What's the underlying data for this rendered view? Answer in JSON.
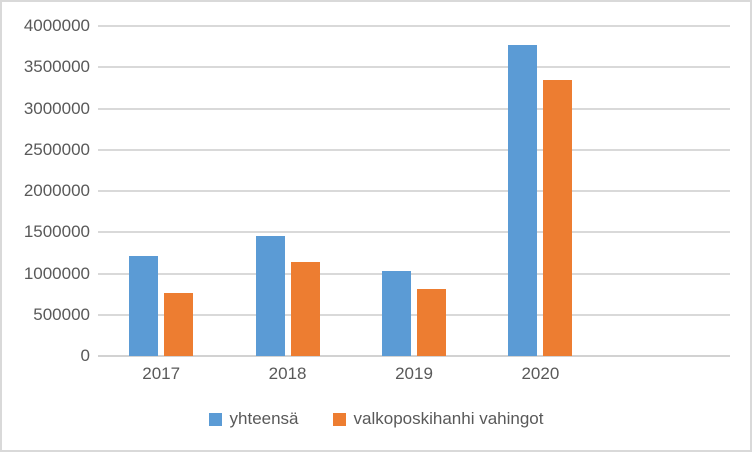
{
  "chart_style": {
    "background": "#ffffff",
    "border_color": "#d9d9d9",
    "gridline_color": "#d9d9d9",
    "axis_line_color": "#d2d2d2",
    "text_color": "#595959",
    "series_colors": [
      "#5b9bd5",
      "#ed7d31"
    ]
  },
  "chart_data": {
    "type": "bar",
    "title": "",
    "xlabel": "",
    "ylabel": "",
    "categories": [
      "2017",
      "2018",
      "2019",
      "2020"
    ],
    "series": [
      {
        "name": "yhteensä",
        "color": "#5b9bd5",
        "values": [
          1210000,
          1460000,
          1030000,
          3770000
        ]
      },
      {
        "name": "valkoposkihanhi vahingot",
        "color": "#ed7d31",
        "values": [
          760000,
          1140000,
          810000,
          3350000
        ]
      }
    ],
    "ylim": [
      0,
      4000000
    ],
    "yticks": [
      0,
      500000,
      1000000,
      1500000,
      2000000,
      2500000,
      3000000,
      3500000,
      4000000
    ],
    "yticklabels": [
      "0",
      "500000",
      "1000000",
      "1500000",
      "2000000",
      "2500000",
      "3000000",
      "3500000",
      "4000000"
    ],
    "grid": true,
    "legend_position": "bottom"
  }
}
